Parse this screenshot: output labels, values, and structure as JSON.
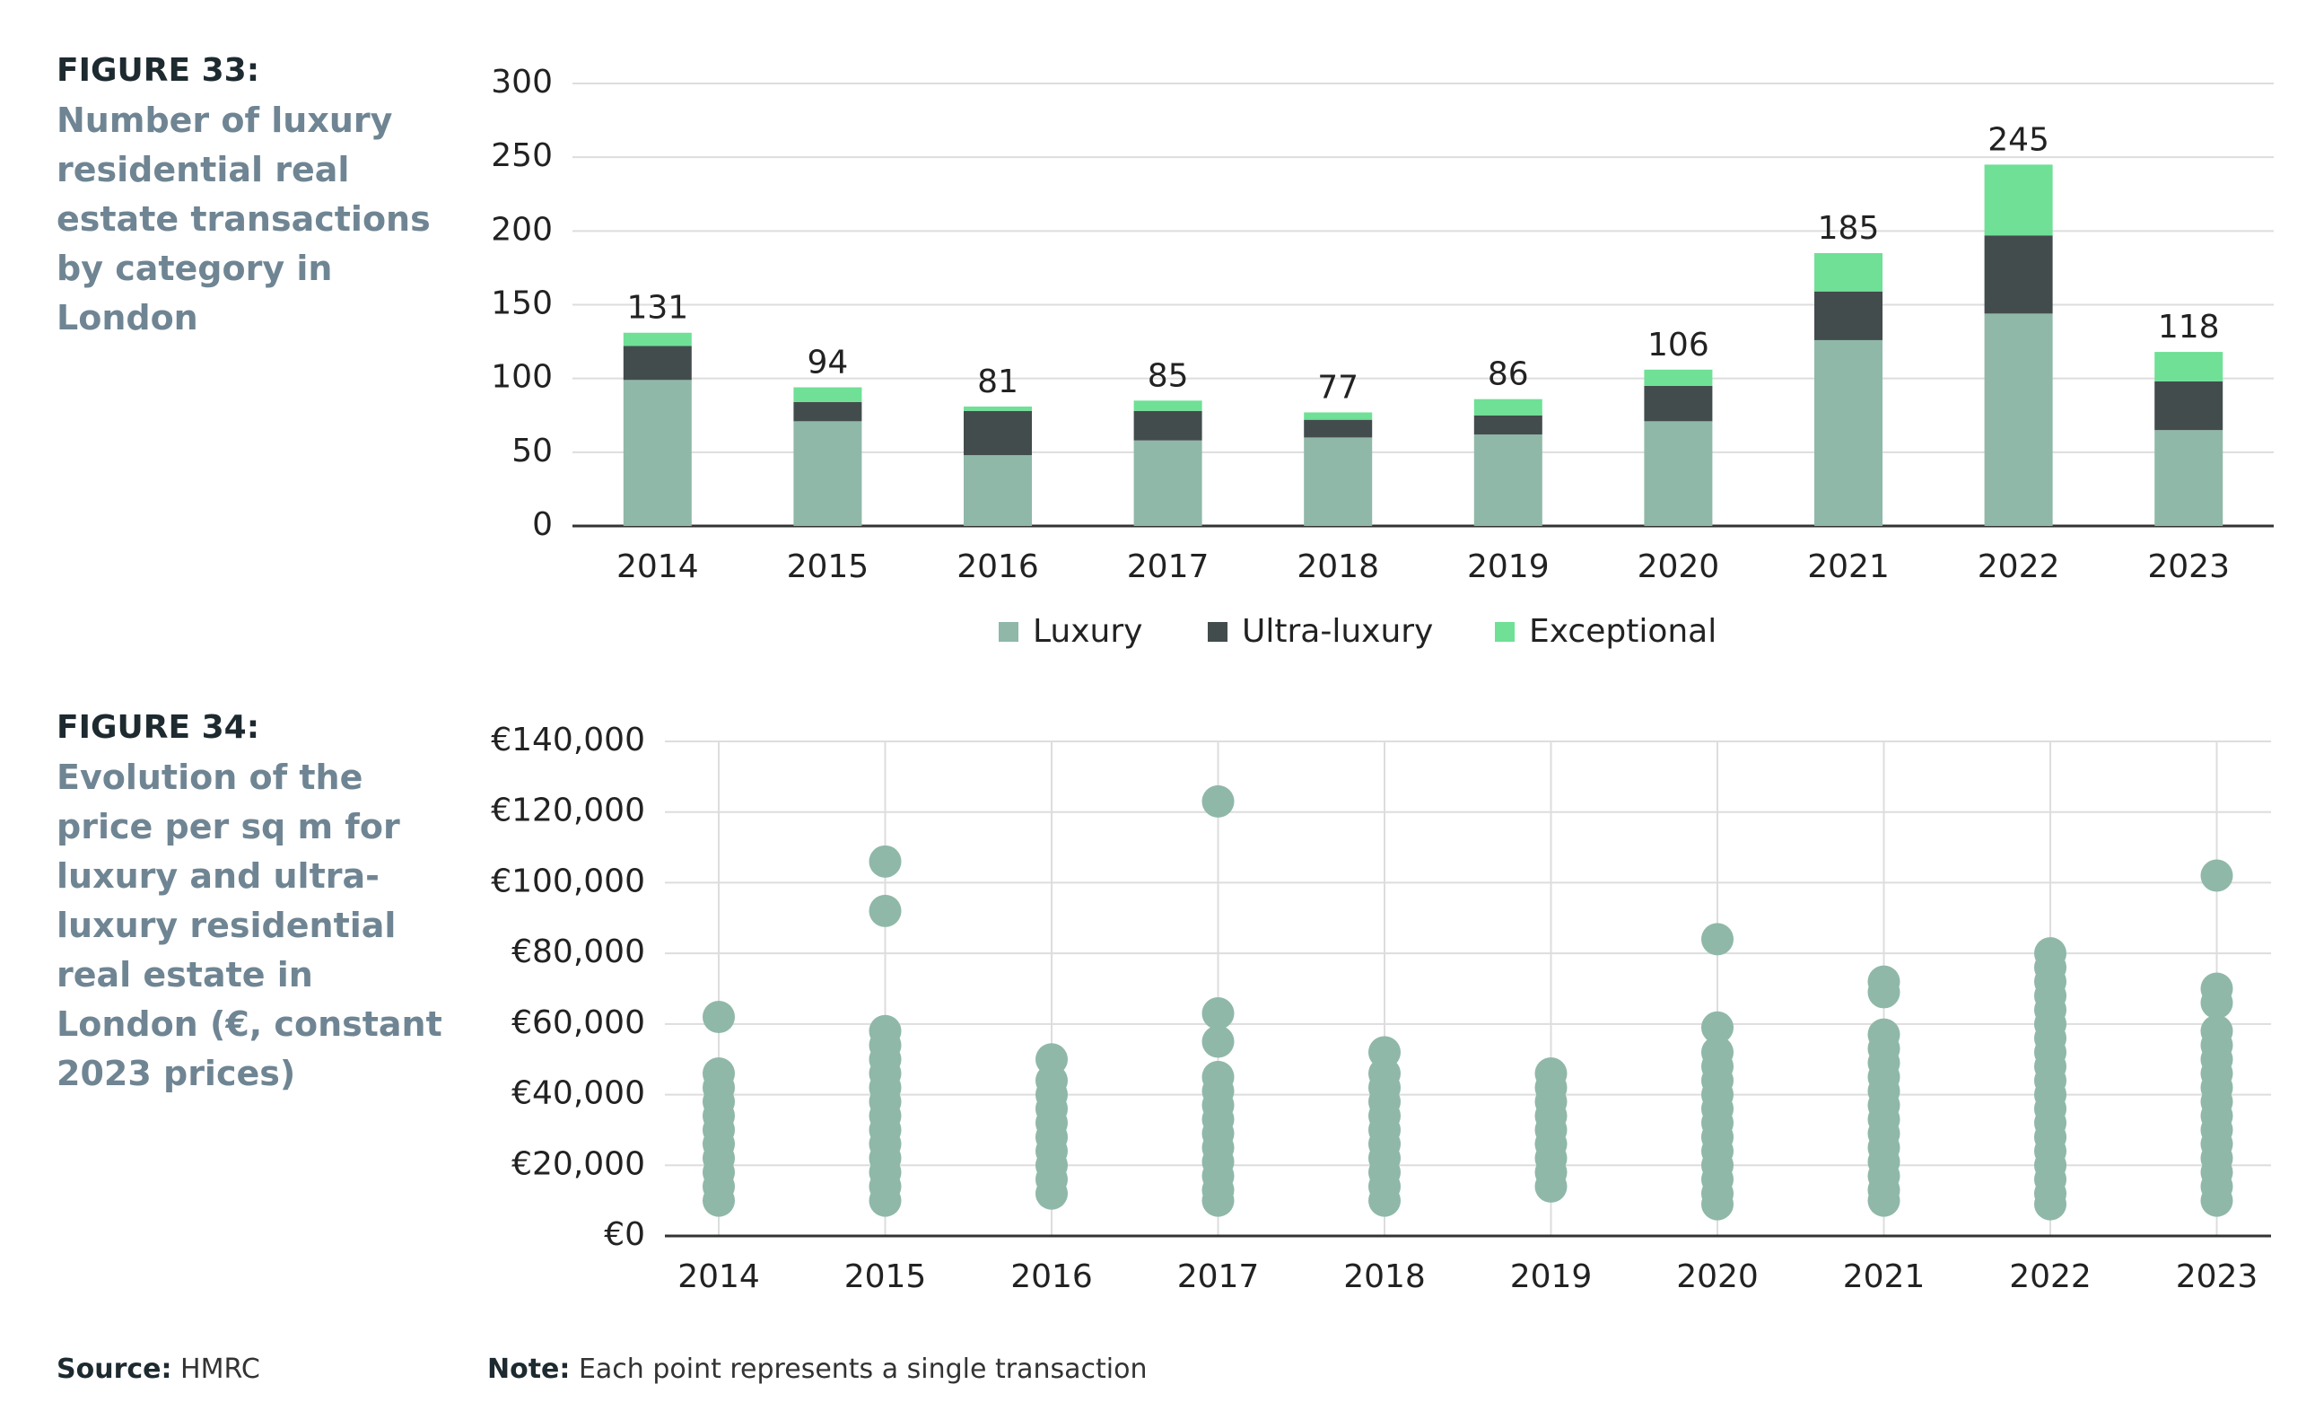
{
  "figures": [
    {
      "label": "FIGURE 33:",
      "caption": "Number of luxury residential real estate transactions by category in London"
    },
    {
      "label": "FIGURE 34:",
      "caption": "Evolution of the price per sq m for luxury and ultra-luxury residential real estate in London (€, constant 2023 prices)"
    }
  ],
  "source": {
    "label": "Source:",
    "text": "HMRC"
  },
  "note": {
    "label": "Note:",
    "text": "Each point represents a single transaction"
  },
  "chart_data": [
    {
      "type": "stacked_bar",
      "categories": [
        "2014",
        "2015",
        "2016",
        "2017",
        "2018",
        "2019",
        "2020",
        "2021",
        "2022",
        "2023"
      ],
      "series": [
        {
          "name": "Luxury",
          "color": "#8fb8a8",
          "values": [
            99,
            71,
            48,
            58,
            60,
            62,
            71,
            126,
            144,
            65
          ]
        },
        {
          "name": "Ultra-luxury",
          "color": "#434c4d",
          "values": [
            23,
            13,
            30,
            20,
            12,
            13,
            24,
            33,
            53,
            33
          ]
        },
        {
          "name": "Exceptional",
          "color": "#6fe096",
          "values": [
            9,
            10,
            3,
            7,
            5,
            11,
            11,
            26,
            48,
            20
          ]
        }
      ],
      "totals": [
        131,
        94,
        81,
        85,
        77,
        86,
        106,
        185,
        245,
        118
      ],
      "ylim": [
        0,
        300
      ],
      "yticks": [
        0,
        50,
        100,
        150,
        200,
        250,
        300
      ],
      "grid": true,
      "legend": "bottom"
    },
    {
      "type": "strip",
      "categories": [
        "2014",
        "2015",
        "2016",
        "2017",
        "2018",
        "2019",
        "2020",
        "2021",
        "2022",
        "2023"
      ],
      "color": "#8fb8a8",
      "values": [
        [
          62000,
          46000,
          42000,
          38000,
          34000,
          30000,
          26000,
          22000,
          18000,
          14000,
          10000
        ],
        [
          106000,
          92000,
          58000,
          54000,
          50000,
          46000,
          42000,
          38000,
          34000,
          30000,
          26000,
          22000,
          18000,
          14000,
          10000
        ],
        [
          50000,
          44000,
          40000,
          36000,
          32000,
          28000,
          24000,
          20000,
          16000,
          12000
        ],
        [
          123000,
          63000,
          55000,
          45000,
          41000,
          37000,
          33000,
          29000,
          25000,
          21000,
          17000,
          13000,
          10000
        ],
        [
          52000,
          46000,
          42000,
          38000,
          34000,
          30000,
          26000,
          22000,
          18000,
          14000,
          10000
        ],
        [
          46000,
          42000,
          38000,
          34000,
          30000,
          26000,
          22000,
          18000,
          14000
        ],
        [
          84000,
          59000,
          52000,
          48000,
          44000,
          40000,
          36000,
          32000,
          28000,
          24000,
          20000,
          16000,
          12000,
          9000
        ],
        [
          72000,
          69000,
          57000,
          53000,
          49000,
          45000,
          41000,
          37000,
          33000,
          29000,
          25000,
          21000,
          17000,
          13000,
          10000
        ],
        [
          80000,
          76000,
          72000,
          68000,
          64000,
          60000,
          56000,
          52000,
          48000,
          44000,
          40000,
          36000,
          32000,
          28000,
          24000,
          20000,
          16000,
          12000,
          9000
        ],
        [
          102000,
          70000,
          66000,
          58000,
          54000,
          50000,
          46000,
          42000,
          38000,
          34000,
          30000,
          26000,
          22000,
          18000,
          14000,
          10000
        ]
      ],
      "ylim": [
        0,
        140000
      ],
      "yticks": [
        {
          "value": 0,
          "label": "€0"
        },
        {
          "value": 20000,
          "label": "€20,000"
        },
        {
          "value": 40000,
          "label": "€40,000"
        },
        {
          "value": 60000,
          "label": "€60,000"
        },
        {
          "value": 80000,
          "label": "€80,000"
        },
        {
          "value": 100000,
          "label": "€100,000"
        },
        {
          "value": 120000,
          "label": "€120,000"
        },
        {
          "value": 140000,
          "label": "€140,000"
        }
      ],
      "grid": true
    }
  ]
}
